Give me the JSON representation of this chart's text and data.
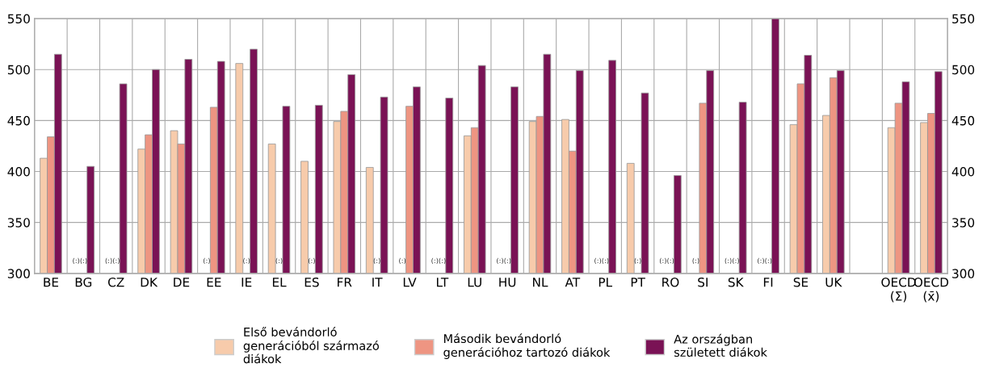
{
  "chart_data": {
    "type": "bar",
    "categories": [
      "BE",
      "BG",
      "CZ",
      "DK",
      "DE",
      "EE",
      "IE",
      "EL",
      "ES",
      "FR",
      "IT",
      "LV",
      "LT",
      "LU",
      "HU",
      "NL",
      "AT",
      "PL",
      "PT",
      "RO",
      "SI",
      "SK",
      "FI",
      "SE",
      "UK",
      null,
      "OECD\n(Σ)",
      "OECD\n(x̄)"
    ],
    "series": [
      {
        "name": "Első bevándorló\ngenerációból származó\ndiákok",
        "color": "#f7cbab",
        "values": [
          413,
          null,
          null,
          422,
          440,
          null,
          506,
          427,
          410,
          449,
          404,
          null,
          null,
          435,
          null,
          449,
          451,
          null,
          408,
          null,
          null,
          null,
          null,
          446,
          455,
          null,
          443,
          448
        ]
      },
      {
        "name": "Második bevándorló\ngenerációhoz tartozó diákok",
        "color": "#ee9582",
        "values": [
          434,
          null,
          null,
          436,
          427,
          463,
          null,
          null,
          null,
          459,
          null,
          464,
          null,
          443,
          null,
          454,
          420,
          null,
          null,
          null,
          467,
          null,
          null,
          486,
          492,
          null,
          467,
          457
        ]
      },
      {
        "name": "Az országban\nszületett diákok",
        "color": "#7a1255",
        "values": [
          515,
          405,
          486,
          500,
          510,
          508,
          520,
          464,
          465,
          495,
          473,
          483,
          472,
          504,
          483,
          515,
          499,
          509,
          477,
          396,
          499,
          468,
          550,
          514,
          499,
          null,
          488,
          498
        ]
      }
    ],
    "ylim": [
      300,
      550
    ],
    "yticks": [
      300,
      350,
      400,
      450,
      500,
      550
    ],
    "y2lim": [
      300,
      550
    ],
    "y2ticks": [
      300,
      350,
      400,
      450,
      500,
      550
    ],
    "grid": true,
    "legend": "bottom",
    "annotations": [
      {
        "text": "(:)(:)",
        "x": "BG",
        "y": 312
      },
      {
        "text": "(:)(:)",
        "x": "CZ",
        "y": 312
      },
      {
        "text": "(:)",
        "x": "EE",
        "y": 312
      },
      {
        "text": "(:)",
        "x": "IE",
        "y": 312
      },
      {
        "text": "(:)",
        "x": "EL",
        "y": 312
      },
      {
        "text": "(:)",
        "x": "ES",
        "y": 312
      },
      {
        "text": "(:)",
        "x": "IT",
        "y": 312
      },
      {
        "text": "(:)",
        "x": "LV",
        "y": 312
      },
      {
        "text": "(:)(:)",
        "x": "LT",
        "y": 312
      },
      {
        "text": "(:)(:)",
        "x": "HU",
        "y": 312
      },
      {
        "text": "(:)(:)",
        "x": "PL",
        "y": 312
      },
      {
        "text": "(:)",
        "x": "PT",
        "y": 312
      },
      {
        "text": "(:)(:)",
        "x": "RO",
        "y": 312
      },
      {
        "text": "(:)",
        "x": "SI",
        "y": 312
      },
      {
        "text": "(:)(:)",
        "x": "SK",
        "y": 312
      },
      {
        "text": "(:)(:)",
        "x": "FI",
        "y": 312
      }
    ]
  }
}
